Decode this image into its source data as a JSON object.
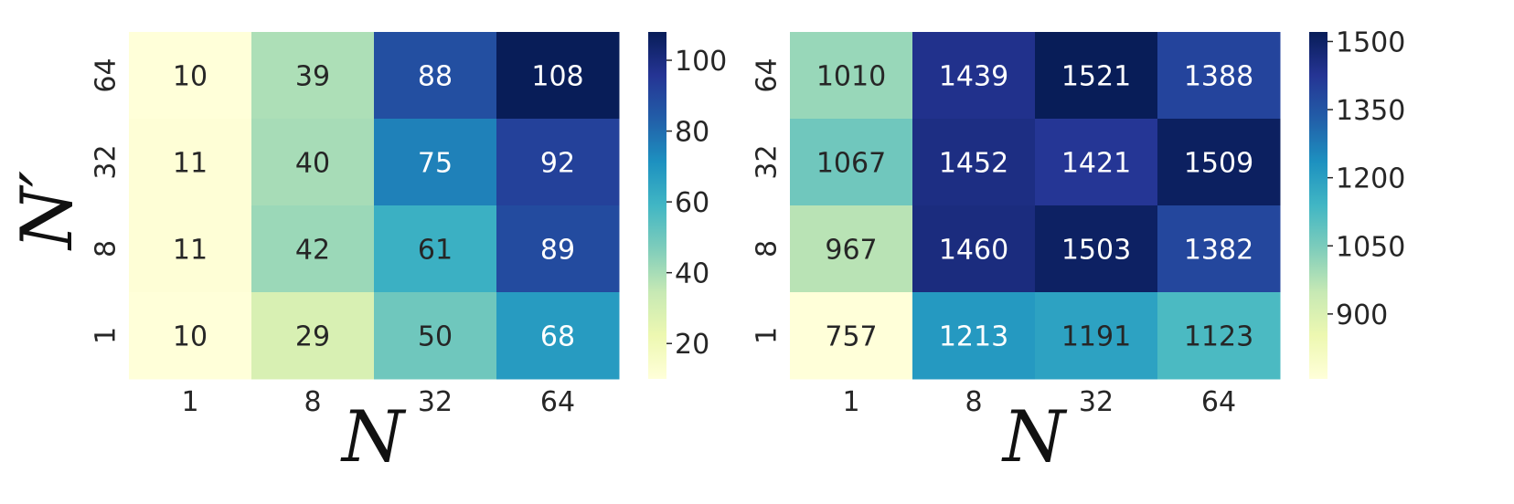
{
  "chart_data": [
    {
      "type": "heatmap",
      "xlabel": "N",
      "ylabel": "N′",
      "x_categories": [
        "1",
        "8",
        "32",
        "64"
      ],
      "y_categories": [
        "64",
        "32",
        "8",
        "1"
      ],
      "values": [
        [
          10,
          39,
          88,
          108
        ],
        [
          11,
          40,
          75,
          92
        ],
        [
          11,
          42,
          61,
          89
        ],
        [
          10,
          29,
          50,
          68
        ]
      ],
      "colorbar": {
        "vmin": 10,
        "vmax": 108,
        "ticks": [
          20,
          40,
          60,
          80,
          100
        ],
        "colormap": "YlGnBu"
      }
    },
    {
      "type": "heatmap",
      "xlabel": "N",
      "ylabel": "",
      "x_categories": [
        "1",
        "8",
        "32",
        "64"
      ],
      "y_categories": [
        "64",
        "32",
        "8",
        "1"
      ],
      "values": [
        [
          1010,
          1439,
          1521,
          1388
        ],
        [
          1067,
          1452,
          1421,
          1509
        ],
        [
          967,
          1460,
          1503,
          1382
        ],
        [
          757,
          1213,
          1191,
          1123
        ]
      ],
      "colorbar": {
        "vmin": 757,
        "vmax": 1521,
        "ticks": [
          900,
          1050,
          1200,
          1350,
          1500
        ],
        "colormap": "YlGnBu"
      }
    }
  ]
}
